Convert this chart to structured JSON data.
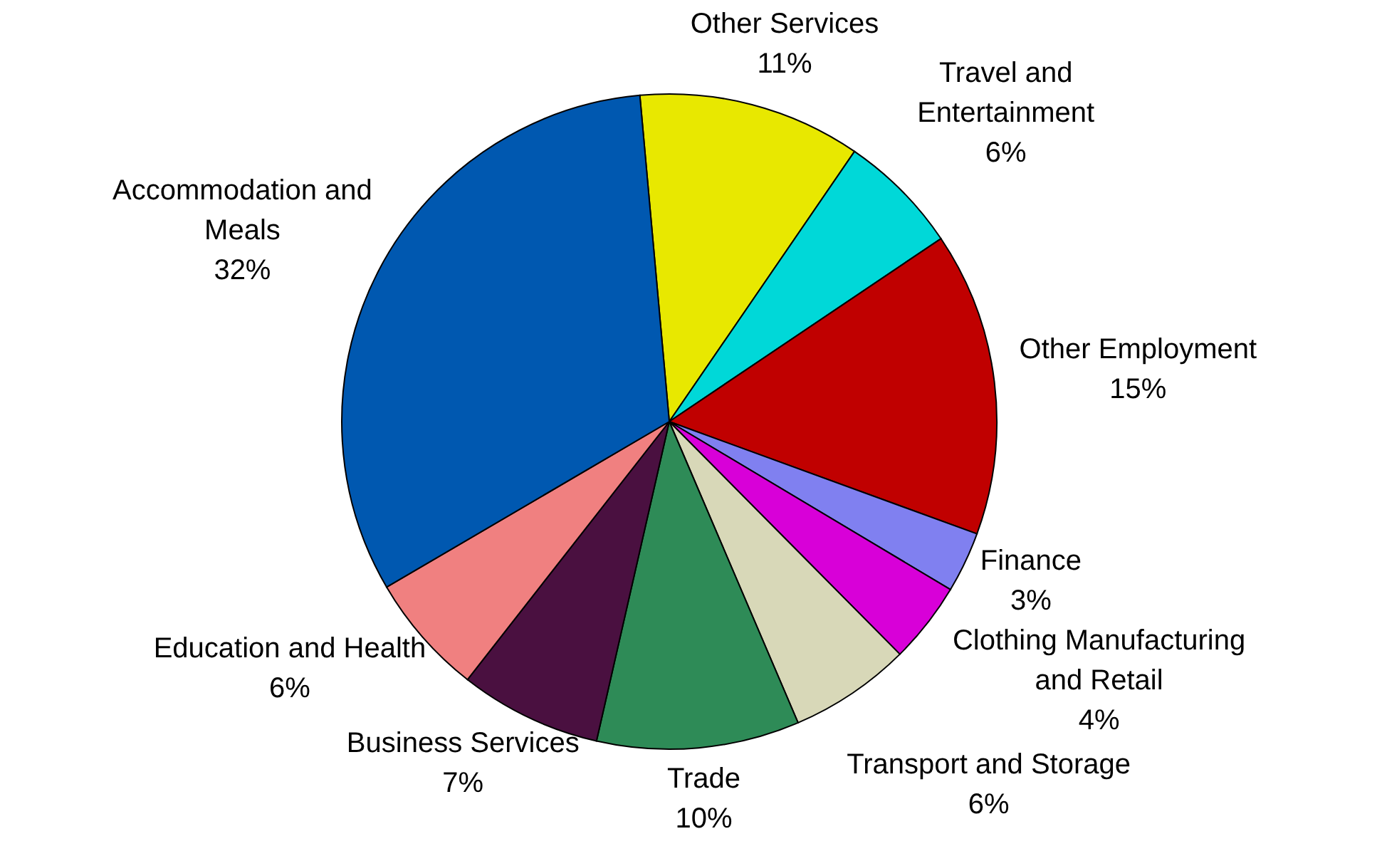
{
  "chart_data": {
    "type": "pie",
    "categories": [
      "Other Services",
      "Travel and Entertainment",
      "Other Employment",
      "Finance",
      "Clothing Manufacturing and Retail",
      "Transport and Storage",
      "Trade",
      "Business Services",
      "Education and Health",
      "Accommodation and Meals"
    ],
    "values": [
      11,
      6,
      15,
      3,
      4,
      6,
      10,
      7,
      6,
      32
    ],
    "value_labels": [
      "11%",
      "6%",
      "15%",
      "3%",
      "4%",
      "6%",
      "10%",
      "7%",
      "6%",
      "32%"
    ],
    "colors": [
      "#e8e800",
      "#00d8d8",
      "#c00000",
      "#8080f0",
      "#d800d8",
      "#d8d8b8",
      "#2e8b57",
      "#4a1040",
      "#f08080",
      "#0058b0"
    ]
  }
}
